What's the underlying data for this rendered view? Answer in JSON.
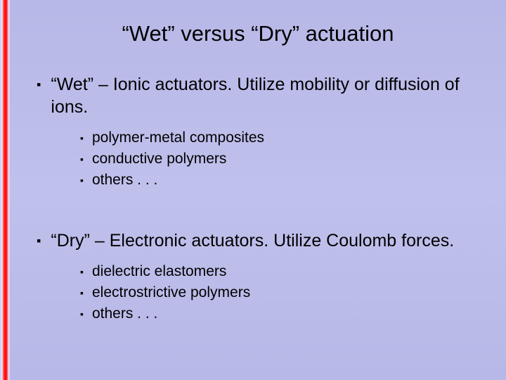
{
  "slide": {
    "title": "“Wet” versus “Dry” actuation",
    "bullets": [
      {
        "text": "“Wet” – Ionic actuators.  Utilize mobility or diffusion of ions.",
        "sub": [
          "polymer-metal composites",
          "conductive polymers",
          "others . . ."
        ]
      },
      {
        "text": "“Dry” – Electronic actuators.  Utilize Coulomb forces.",
        "sub": [
          "dielectric elastomers",
          "electrostrictive polymers",
          "others . . ."
        ]
      }
    ]
  },
  "style": {
    "background_base": "#bcbce8",
    "stripe_red": "#ff0000",
    "title_fontsize_pt": 24,
    "body_l1_fontsize_pt": 19,
    "body_l2_fontsize_pt": 16,
    "bullet_marker": "▪",
    "text_color": "#000000",
    "title_font": "Verdana",
    "body_font": "Arial"
  }
}
